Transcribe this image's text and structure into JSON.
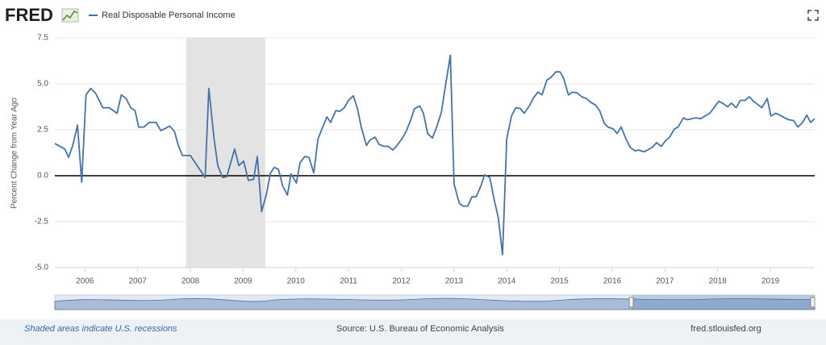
{
  "logo": "FRED",
  "chart_data": {
    "type": "line",
    "y_label": "Percent Change from Year Ago",
    "xlim": [
      2005.43,
      2019.84
    ],
    "xticks": [
      2006,
      2007,
      2008,
      2009,
      2010,
      2011,
      2012,
      2013,
      2014,
      2015,
      2016,
      2017,
      2018,
      2019
    ],
    "ylim": [
      -5,
      7.5
    ],
    "yticks": [
      7.5,
      {
        "value": 5,
        "label": "5.0"
      },
      2.5,
      {
        "value": 0,
        "label": "0.0"
      },
      -2.5,
      {
        "value": -5,
        "label": "-5.0"
      }
    ],
    "grid": true,
    "recessions": [
      [
        2007.92,
        2009.42
      ]
    ],
    "x": [
      2005.43,
      2005.62,
      2005.69,
      2005.77,
      2005.86,
      2005.94,
      2006.02,
      2006.11,
      2006.2,
      2006.34,
      2006.46,
      2006.61,
      2006.69,
      2006.78,
      2006.87,
      2006.95,
      2007.02,
      2007.12,
      2007.22,
      2007.35,
      2007.44,
      2007.61,
      2007.7,
      2007.77,
      2007.85,
      2008.0,
      2008.14,
      2008.28,
      2008.35,
      2008.45,
      2008.52,
      2008.61,
      2008.69,
      2008.84,
      2008.92,
      2009.01,
      2009.1,
      2009.2,
      2009.27,
      2009.35,
      2009.44,
      2009.52,
      2009.59,
      2009.67,
      2009.75,
      2009.84,
      2009.91,
      2010.01,
      2010.08,
      2010.17,
      2010.25,
      2010.34,
      2010.42,
      2010.51,
      2010.59,
      2010.66,
      2010.76,
      2010.83,
      2010.92,
      2011.0,
      2011.09,
      2011.17,
      2011.24,
      2011.34,
      2011.41,
      2011.5,
      2011.58,
      2011.67,
      2011.75,
      2011.84,
      2011.92,
      2012.01,
      2012.09,
      2012.18,
      2012.25,
      2012.35,
      2012.42,
      2012.5,
      2012.59,
      2012.67,
      2012.76,
      2012.83,
      2012.93,
      2013.0,
      2013.1,
      2013.17,
      2013.26,
      2013.34,
      2013.42,
      2013.51,
      2013.58,
      2013.68,
      2013.75,
      2013.84,
      2013.92,
      2014.0,
      2014.09,
      2014.17,
      2014.26,
      2014.33,
      2014.43,
      2014.5,
      2014.59,
      2014.67,
      2014.76,
      2014.84,
      2014.93,
      2015.01,
      2015.08,
      2015.17,
      2015.25,
      2015.34,
      2015.42,
      2015.51,
      2015.59,
      2015.68,
      2015.76,
      2015.85,
      2015.92,
      2016.02,
      2016.09,
      2016.17,
      2016.26,
      2016.34,
      2016.43,
      2016.5,
      2016.6,
      2016.67,
      2016.76,
      2016.84,
      2016.93,
      2017.01,
      2017.09,
      2017.18,
      2017.25,
      2017.35,
      2017.42,
      2017.51,
      2017.59,
      2017.68,
      2017.76,
      2017.85,
      2017.93,
      2018.02,
      2018.09,
      2018.19,
      2018.26,
      2018.35,
      2018.43,
      2018.52,
      2018.6,
      2018.68,
      2018.77,
      2018.84,
      2018.94,
      2019.01,
      2019.1,
      2019.18,
      2019.27,
      2019.35,
      2019.44,
      2019.52,
      2019.61,
      2019.69,
      2019.76,
      2019.84
    ],
    "series": [
      {
        "name": "Real Disposable Personal Income",
        "color": "#4572a7",
        "values": [
          1.75,
          1.45,
          1.0,
          1.65,
          2.75,
          -0.35,
          4.4,
          4.75,
          4.5,
          3.7,
          3.7,
          3.4,
          4.4,
          4.2,
          3.7,
          3.55,
          2.65,
          2.65,
          2.9,
          2.9,
          2.45,
          2.7,
          2.4,
          1.65,
          1.1,
          1.1,
          0.5,
          -0.1,
          4.75,
          2.0,
          0.55,
          -0.1,
          -0.05,
          1.45,
          0.55,
          0.8,
          -0.25,
          -0.2,
          1.05,
          -1.95,
          -1.05,
          0.15,
          0.45,
          0.35,
          -0.55,
          -1.05,
          0.1,
          -0.4,
          0.7,
          1.05,
          1.0,
          0.15,
          2.0,
          2.65,
          3.2,
          2.9,
          3.55,
          3.5,
          3.7,
          4.1,
          4.35,
          3.65,
          2.65,
          1.65,
          1.95,
          2.1,
          1.7,
          1.6,
          1.6,
          1.4,
          1.65,
          2.0,
          2.4,
          3.05,
          3.65,
          3.8,
          3.4,
          2.3,
          2.05,
          2.65,
          3.45,
          4.75,
          6.55,
          -0.45,
          -1.5,
          -1.65,
          -1.65,
          -1.15,
          -1.15,
          -0.55,
          0.05,
          -0.1,
          -1.15,
          -2.3,
          -4.3,
          2.0,
          3.25,
          3.7,
          3.65,
          3.4,
          3.8,
          4.2,
          4.55,
          4.4,
          5.2,
          5.35,
          5.65,
          5.65,
          5.3,
          4.4,
          4.55,
          4.5,
          4.3,
          4.2,
          4.0,
          3.85,
          3.55,
          2.85,
          2.65,
          2.55,
          2.3,
          2.65,
          2.0,
          1.55,
          1.35,
          1.4,
          1.3,
          1.4,
          1.55,
          1.8,
          1.6,
          1.9,
          2.1,
          2.55,
          2.65,
          3.15,
          3.05,
          3.1,
          3.15,
          3.1,
          3.25,
          3.4,
          3.7,
          4.05,
          3.95,
          3.75,
          3.95,
          3.7,
          4.1,
          4.1,
          4.3,
          4.05,
          3.85,
          3.7,
          4.2,
          3.25,
          3.4,
          3.3,
          3.15,
          3.05,
          3.0,
          2.65,
          2.9,
          3.3,
          2.9,
          3.1
        ]
      }
    ]
  },
  "footer": {
    "note": "Shaded areas indicate U.S. recessions",
    "source": "Source: U.S. Bureau of Economic Analysis",
    "site": "fred.stlouisfed.org"
  }
}
